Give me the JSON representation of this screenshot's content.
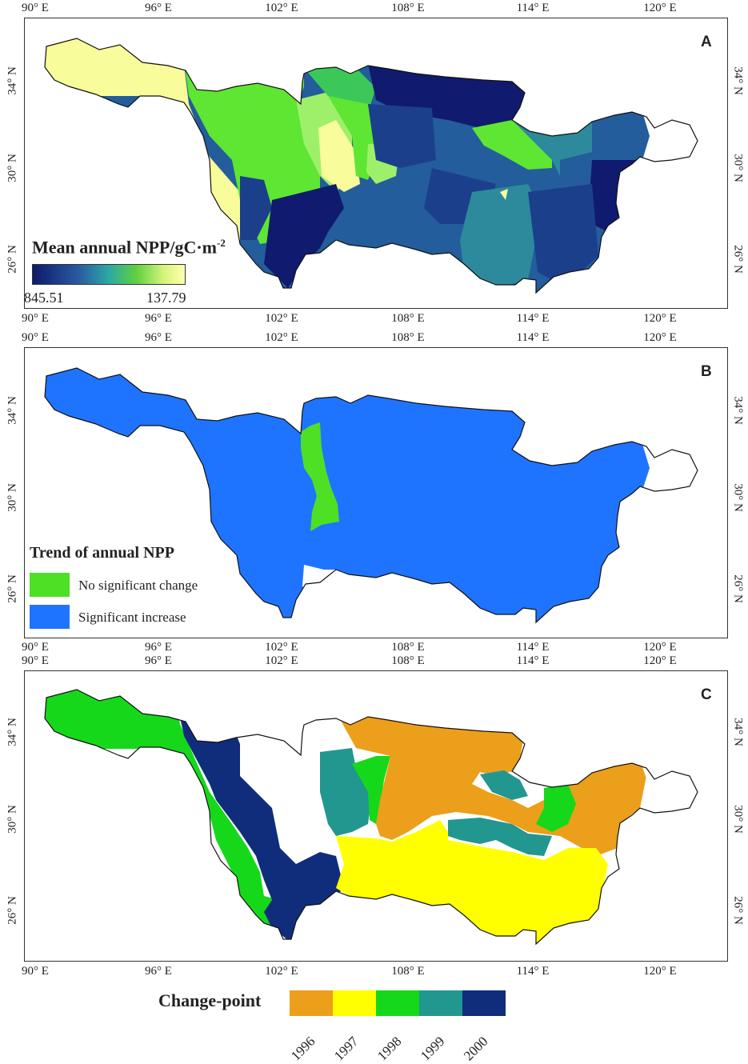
{
  "axes": {
    "lon_labels": [
      "90° E",
      "96° E",
      "102° E",
      "108° E",
      "114° E",
      "120° E"
    ],
    "lat_labels": [
      "34° N",
      "30° N",
      "26° N"
    ]
  },
  "panels": [
    {
      "letter": "A",
      "legend": {
        "title": "Mean annual NPP/gC·m",
        "title_sup": "-2",
        "min_label": "845.51",
        "max_label": "137.79",
        "gradient": [
          "#0d1a6b",
          "#2a5aa0",
          "#2aa9a4",
          "#5fd040",
          "#d6f37a",
          "#ffffb0"
        ]
      }
    },
    {
      "letter": "B",
      "legend": {
        "title": "Trend of annual NPP",
        "items": [
          {
            "label": "No significant change",
            "color": "#4ee024"
          },
          {
            "label": "Significant increase",
            "color": "#1f74ff"
          }
        ]
      }
    },
    {
      "letter": "C",
      "legend": {
        "title": "Change-point",
        "items": [
          {
            "label": "1996",
            "color": "#ec9f1a"
          },
          {
            "label": "1997",
            "color": "#ffff00"
          },
          {
            "label": "1998",
            "color": "#15d81a"
          },
          {
            "label": "1999",
            "color": "#21978f"
          },
          {
            "label": "2000",
            "color": "#102d7c"
          }
        ]
      }
    }
  ],
  "map_colors": {
    "outline": "#111111",
    "unclassified": "#ffffff",
    "a_dark": "#101a6e",
    "a_navy": "#1c3f8c",
    "a_blue": "#235d9b",
    "a_teal": "#2c8a9c",
    "a_green": "#5ee632",
    "a_midgreen": "#3cc858",
    "a_lightgreen": "#9ef06a",
    "a_pale": "#f8fc9a",
    "b_increase": "#1f74ff",
    "b_nochange": "#4ee024",
    "c_1996": "#ec9f1a",
    "c_1997": "#ffff00",
    "c_1998": "#15d81a",
    "c_1999": "#21978f",
    "c_2000": "#102d7c"
  }
}
